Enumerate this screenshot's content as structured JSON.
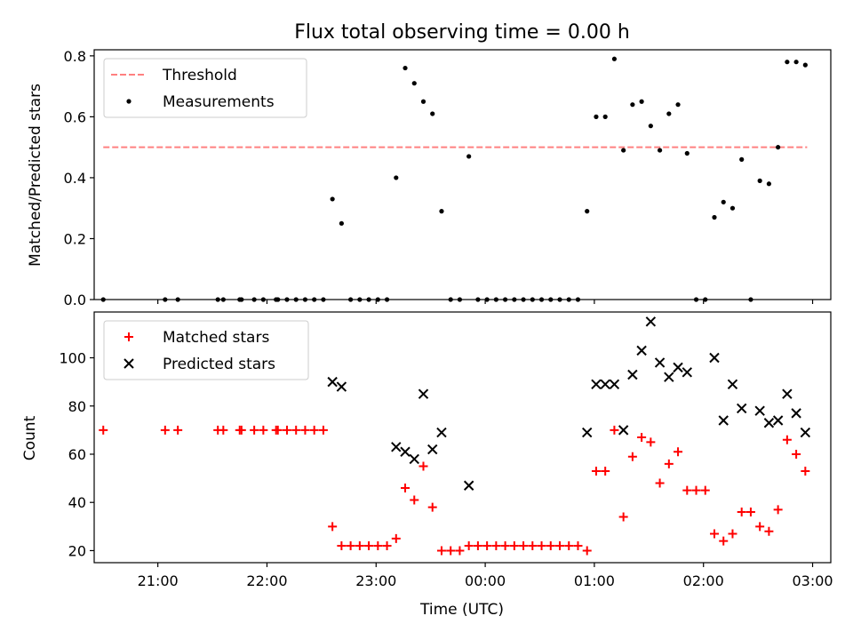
{
  "chart_data": [
    {
      "type": "scatter",
      "title": "Flux total observing time = 0.00 h",
      "xlabel": "",
      "ylabel": "Matched/Predicted stars",
      "xlim": [
        "20:25",
        "03:10"
      ],
      "ylim": [
        0,
        0.82
      ],
      "yticks": [
        0.0,
        0.2,
        0.4,
        0.6,
        0.8
      ],
      "ytick_labels": [
        "0.0",
        "0.2",
        "0.4",
        "0.6",
        "0.8"
      ],
      "xticks": [
        "21:00",
        "22:00",
        "23:00",
        "00:00",
        "01:00",
        "02:00",
        "03:00"
      ],
      "x_tick_labels_visible": false,
      "legend": {
        "position": "upper-left",
        "entries": [
          "Threshold",
          "Measurements"
        ]
      },
      "series": [
        {
          "name": "Threshold",
          "style": "dashed-line",
          "color": "#ff8080",
          "points": [
            [
              "20:30",
              0.5
            ],
            [
              "02:57",
              0.5
            ]
          ]
        },
        {
          "name": "Measurements",
          "style": "dot",
          "color": "#000000",
          "points": [
            [
              "20:30",
              0.0
            ],
            [
              "21:04",
              0.0
            ],
            [
              "21:11",
              0.0
            ],
            [
              "21:33",
              0.0
            ],
            [
              "21:36",
              0.0
            ],
            [
              "21:45",
              0.0
            ],
            [
              "21:46",
              0.0
            ],
            [
              "21:53",
              0.0
            ],
            [
              "21:58",
              0.0
            ],
            [
              "22:05",
              0.0
            ],
            [
              "22:06",
              0.0
            ],
            [
              "22:11",
              0.0
            ],
            [
              "22:16",
              0.0
            ],
            [
              "22:21",
              0.0
            ],
            [
              "22:26",
              0.0
            ],
            [
              "22:31",
              0.0
            ],
            [
              "22:36",
              0.33
            ],
            [
              "22:41",
              0.25
            ],
            [
              "22:46",
              0.0
            ],
            [
              "22:51",
              0.0
            ],
            [
              "22:56",
              0.0
            ],
            [
              "23:01",
              0.0
            ],
            [
              "23:06",
              0.0
            ],
            [
              "23:11",
              0.4
            ],
            [
              "23:16",
              0.76
            ],
            [
              "23:21",
              0.71
            ],
            [
              "23:26",
              0.65
            ],
            [
              "23:31",
              0.61
            ],
            [
              "23:36",
              0.29
            ],
            [
              "23:41",
              0.0
            ],
            [
              "23:46",
              0.0
            ],
            [
              "23:51",
              0.47
            ],
            [
              "23:56",
              0.0
            ],
            [
              "00:01",
              0.0
            ],
            [
              "00:06",
              0.0
            ],
            [
              "00:11",
              0.0
            ],
            [
              "00:16",
              0.0
            ],
            [
              "00:21",
              0.0
            ],
            [
              "00:26",
              0.0
            ],
            [
              "00:31",
              0.0
            ],
            [
              "00:36",
              0.0
            ],
            [
              "00:41",
              0.0
            ],
            [
              "00:46",
              0.0
            ],
            [
              "00:51",
              0.0
            ],
            [
              "00:56",
              0.29
            ],
            [
              "01:01",
              0.6
            ],
            [
              "01:06",
              0.6
            ],
            [
              "01:11",
              0.79
            ],
            [
              "01:16",
              0.49
            ],
            [
              "01:21",
              0.64
            ],
            [
              "01:26",
              0.65
            ],
            [
              "01:31",
              0.57
            ],
            [
              "01:36",
              0.49
            ],
            [
              "01:41",
              0.61
            ],
            [
              "01:46",
              0.64
            ],
            [
              "01:51",
              0.48
            ],
            [
              "01:56",
              0.0
            ],
            [
              "02:01",
              0.0
            ],
            [
              "02:06",
              0.27
            ],
            [
              "02:11",
              0.32
            ],
            [
              "02:16",
              0.3
            ],
            [
              "02:21",
              0.46
            ],
            [
              "02:26",
              0.0
            ],
            [
              "02:31",
              0.39
            ],
            [
              "02:36",
              0.38
            ],
            [
              "02:41",
              0.5
            ],
            [
              "02:46",
              0.78
            ],
            [
              "02:51",
              0.78
            ],
            [
              "02:56",
              0.77
            ]
          ]
        }
      ]
    },
    {
      "type": "scatter",
      "title": "",
      "xlabel": "Time (UTC)",
      "ylabel": "Count",
      "xlim": [
        "20:25",
        "03:10"
      ],
      "ylim": [
        15,
        119
      ],
      "yticks": [
        20,
        40,
        60,
        80,
        100
      ],
      "ytick_labels": [
        "20",
        "40",
        "60",
        "80",
        "100"
      ],
      "xticks": [
        "21:00",
        "22:00",
        "23:00",
        "00:00",
        "01:00",
        "02:00",
        "03:00"
      ],
      "xtick_labels": [
        "21:00",
        "22:00",
        "23:00",
        "00:00",
        "01:00",
        "02:00",
        "03:00"
      ],
      "legend": {
        "position": "upper-left",
        "entries": [
          "Matched stars",
          "Predicted stars"
        ]
      },
      "series": [
        {
          "name": "Matched stars",
          "marker": "plus",
          "color": "#ff0000",
          "points": [
            [
              "20:30",
              70
            ],
            [
              "21:04",
              70
            ],
            [
              "21:11",
              70
            ],
            [
              "21:33",
              70
            ],
            [
              "21:36",
              70
            ],
            [
              "21:45",
              70
            ],
            [
              "21:46",
              70
            ],
            [
              "21:53",
              70
            ],
            [
              "21:58",
              70
            ],
            [
              "22:05",
              70
            ],
            [
              "22:06",
              70
            ],
            [
              "22:11",
              70
            ],
            [
              "22:16",
              70
            ],
            [
              "22:21",
              70
            ],
            [
              "22:26",
              70
            ],
            [
              "22:31",
              70
            ],
            [
              "22:36",
              30
            ],
            [
              "22:41",
              22
            ],
            [
              "22:46",
              22
            ],
            [
              "22:51",
              22
            ],
            [
              "22:56",
              22
            ],
            [
              "23:01",
              22
            ],
            [
              "23:06",
              22
            ],
            [
              "23:11",
              25
            ],
            [
              "23:16",
              46
            ],
            [
              "23:21",
              41
            ],
            [
              "23:26",
              55
            ],
            [
              "23:31",
              38
            ],
            [
              "23:36",
              20
            ],
            [
              "23:41",
              20
            ],
            [
              "23:46",
              20
            ],
            [
              "23:51",
              22
            ],
            [
              "23:56",
              22
            ],
            [
              "00:01",
              22
            ],
            [
              "00:06",
              22
            ],
            [
              "00:11",
              22
            ],
            [
              "00:16",
              22
            ],
            [
              "00:21",
              22
            ],
            [
              "00:26",
              22
            ],
            [
              "00:31",
              22
            ],
            [
              "00:36",
              22
            ],
            [
              "00:41",
              22
            ],
            [
              "00:46",
              22
            ],
            [
              "00:51",
              22
            ],
            [
              "00:56",
              20
            ],
            [
              "01:01",
              53
            ],
            [
              "01:06",
              53
            ],
            [
              "01:11",
              70
            ],
            [
              "01:16",
              34
            ],
            [
              "01:21",
              59
            ],
            [
              "01:26",
              67
            ],
            [
              "01:31",
              65
            ],
            [
              "01:36",
              48
            ],
            [
              "01:41",
              56
            ],
            [
              "01:46",
              61
            ],
            [
              "01:51",
              45
            ],
            [
              "01:56",
              45
            ],
            [
              "02:01",
              45
            ],
            [
              "02:06",
              27
            ],
            [
              "02:11",
              24
            ],
            [
              "02:16",
              27
            ],
            [
              "02:21",
              36
            ],
            [
              "02:26",
              36
            ],
            [
              "02:31",
              30
            ],
            [
              "02:36",
              28
            ],
            [
              "02:41",
              37
            ],
            [
              "02:46",
              66
            ],
            [
              "02:51",
              60
            ],
            [
              "02:56",
              53
            ]
          ]
        },
        {
          "name": "Predicted stars",
          "marker": "x",
          "color": "#000000",
          "points": [
            [
              "22:36",
              90
            ],
            [
              "22:41",
              88
            ],
            [
              "23:11",
              63
            ],
            [
              "23:16",
              61
            ],
            [
              "23:21",
              58
            ],
            [
              "23:26",
              85
            ],
            [
              "23:31",
              62
            ],
            [
              "23:36",
              69
            ],
            [
              "23:51",
              47
            ],
            [
              "00:56",
              69
            ],
            [
              "01:01",
              89
            ],
            [
              "01:06",
              89
            ],
            [
              "01:11",
              89
            ],
            [
              "01:16",
              70
            ],
            [
              "01:21",
              93
            ],
            [
              "01:26",
              103
            ],
            [
              "01:31",
              115
            ],
            [
              "01:36",
              98
            ],
            [
              "01:41",
              92
            ],
            [
              "01:46",
              96
            ],
            [
              "01:51",
              94
            ],
            [
              "02:06",
              100
            ],
            [
              "02:11",
              74
            ],
            [
              "02:16",
              89
            ],
            [
              "02:21",
              79
            ],
            [
              "02:31",
              78
            ],
            [
              "02:36",
              73
            ],
            [
              "02:41",
              74
            ],
            [
              "02:46",
              85
            ],
            [
              "02:51",
              77
            ],
            [
              "02:56",
              69
            ]
          ]
        }
      ]
    }
  ]
}
